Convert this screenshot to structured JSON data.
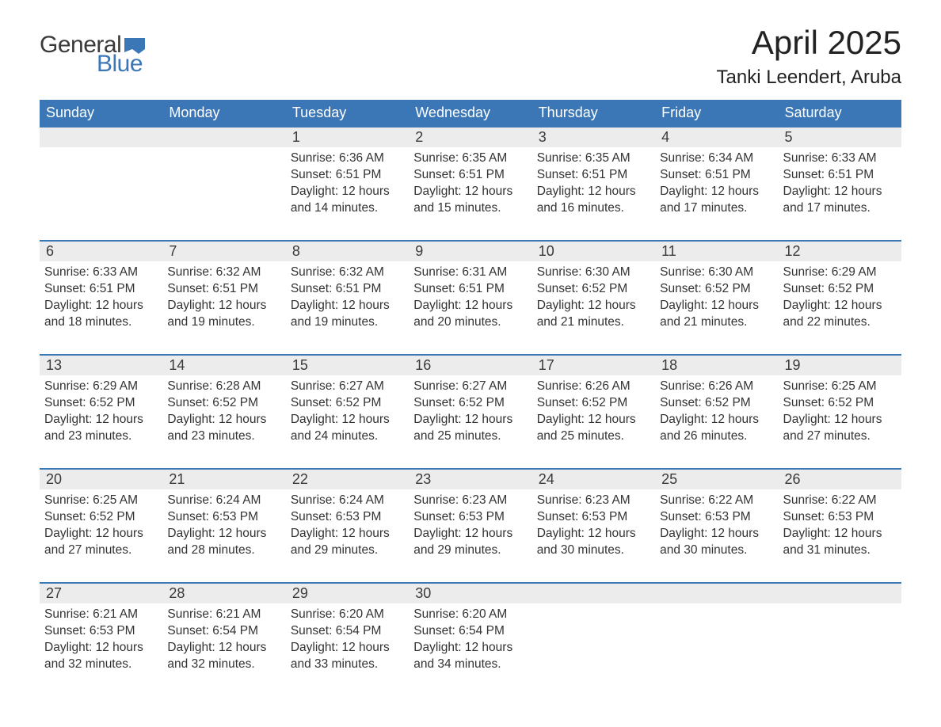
{
  "logo": {
    "text_general": "General",
    "text_blue": "Blue",
    "general_color": "#3a3a3a",
    "blue_color": "#3b77b6",
    "flag_color": "#3b77b6"
  },
  "header": {
    "month_title": "April 2025",
    "location": "Tanki Leendert, Aruba",
    "title_fontsize": 42,
    "location_fontsize": 24
  },
  "calendar": {
    "header_bg": "#3b77b6",
    "header_text_color": "#ffffff",
    "daynum_bg": "#ececec",
    "border_color": "#3b77b6",
    "text_color": "#333333",
    "body_fontsize": 15.5,
    "weekdays": [
      "Sunday",
      "Monday",
      "Tuesday",
      "Wednesday",
      "Thursday",
      "Friday",
      "Saturday"
    ],
    "weeks": [
      [
        {
          "empty": true
        },
        {
          "empty": true
        },
        {
          "num": "1",
          "sunrise": "Sunrise: 6:36 AM",
          "sunset": "Sunset: 6:51 PM",
          "daylight1": "Daylight: 12 hours",
          "daylight2": "and 14 minutes."
        },
        {
          "num": "2",
          "sunrise": "Sunrise: 6:35 AM",
          "sunset": "Sunset: 6:51 PM",
          "daylight1": "Daylight: 12 hours",
          "daylight2": "and 15 minutes."
        },
        {
          "num": "3",
          "sunrise": "Sunrise: 6:35 AM",
          "sunset": "Sunset: 6:51 PM",
          "daylight1": "Daylight: 12 hours",
          "daylight2": "and 16 minutes."
        },
        {
          "num": "4",
          "sunrise": "Sunrise: 6:34 AM",
          "sunset": "Sunset: 6:51 PM",
          "daylight1": "Daylight: 12 hours",
          "daylight2": "and 17 minutes."
        },
        {
          "num": "5",
          "sunrise": "Sunrise: 6:33 AM",
          "sunset": "Sunset: 6:51 PM",
          "daylight1": "Daylight: 12 hours",
          "daylight2": "and 17 minutes."
        }
      ],
      [
        {
          "num": "6",
          "sunrise": "Sunrise: 6:33 AM",
          "sunset": "Sunset: 6:51 PM",
          "daylight1": "Daylight: 12 hours",
          "daylight2": "and 18 minutes."
        },
        {
          "num": "7",
          "sunrise": "Sunrise: 6:32 AM",
          "sunset": "Sunset: 6:51 PM",
          "daylight1": "Daylight: 12 hours",
          "daylight2": "and 19 minutes."
        },
        {
          "num": "8",
          "sunrise": "Sunrise: 6:32 AM",
          "sunset": "Sunset: 6:51 PM",
          "daylight1": "Daylight: 12 hours",
          "daylight2": "and 19 minutes."
        },
        {
          "num": "9",
          "sunrise": "Sunrise: 6:31 AM",
          "sunset": "Sunset: 6:51 PM",
          "daylight1": "Daylight: 12 hours",
          "daylight2": "and 20 minutes."
        },
        {
          "num": "10",
          "sunrise": "Sunrise: 6:30 AM",
          "sunset": "Sunset: 6:52 PM",
          "daylight1": "Daylight: 12 hours",
          "daylight2": "and 21 minutes."
        },
        {
          "num": "11",
          "sunrise": "Sunrise: 6:30 AM",
          "sunset": "Sunset: 6:52 PM",
          "daylight1": "Daylight: 12 hours",
          "daylight2": "and 21 minutes."
        },
        {
          "num": "12",
          "sunrise": "Sunrise: 6:29 AM",
          "sunset": "Sunset: 6:52 PM",
          "daylight1": "Daylight: 12 hours",
          "daylight2": "and 22 minutes."
        }
      ],
      [
        {
          "num": "13",
          "sunrise": "Sunrise: 6:29 AM",
          "sunset": "Sunset: 6:52 PM",
          "daylight1": "Daylight: 12 hours",
          "daylight2": "and 23 minutes."
        },
        {
          "num": "14",
          "sunrise": "Sunrise: 6:28 AM",
          "sunset": "Sunset: 6:52 PM",
          "daylight1": "Daylight: 12 hours",
          "daylight2": "and 23 minutes."
        },
        {
          "num": "15",
          "sunrise": "Sunrise: 6:27 AM",
          "sunset": "Sunset: 6:52 PM",
          "daylight1": "Daylight: 12 hours",
          "daylight2": "and 24 minutes."
        },
        {
          "num": "16",
          "sunrise": "Sunrise: 6:27 AM",
          "sunset": "Sunset: 6:52 PM",
          "daylight1": "Daylight: 12 hours",
          "daylight2": "and 25 minutes."
        },
        {
          "num": "17",
          "sunrise": "Sunrise: 6:26 AM",
          "sunset": "Sunset: 6:52 PM",
          "daylight1": "Daylight: 12 hours",
          "daylight2": "and 25 minutes."
        },
        {
          "num": "18",
          "sunrise": "Sunrise: 6:26 AM",
          "sunset": "Sunset: 6:52 PM",
          "daylight1": "Daylight: 12 hours",
          "daylight2": "and 26 minutes."
        },
        {
          "num": "19",
          "sunrise": "Sunrise: 6:25 AM",
          "sunset": "Sunset: 6:52 PM",
          "daylight1": "Daylight: 12 hours",
          "daylight2": "and 27 minutes."
        }
      ],
      [
        {
          "num": "20",
          "sunrise": "Sunrise: 6:25 AM",
          "sunset": "Sunset: 6:52 PM",
          "daylight1": "Daylight: 12 hours",
          "daylight2": "and 27 minutes."
        },
        {
          "num": "21",
          "sunrise": "Sunrise: 6:24 AM",
          "sunset": "Sunset: 6:53 PM",
          "daylight1": "Daylight: 12 hours",
          "daylight2": "and 28 minutes."
        },
        {
          "num": "22",
          "sunrise": "Sunrise: 6:24 AM",
          "sunset": "Sunset: 6:53 PM",
          "daylight1": "Daylight: 12 hours",
          "daylight2": "and 29 minutes."
        },
        {
          "num": "23",
          "sunrise": "Sunrise: 6:23 AM",
          "sunset": "Sunset: 6:53 PM",
          "daylight1": "Daylight: 12 hours",
          "daylight2": "and 29 minutes."
        },
        {
          "num": "24",
          "sunrise": "Sunrise: 6:23 AM",
          "sunset": "Sunset: 6:53 PM",
          "daylight1": "Daylight: 12 hours",
          "daylight2": "and 30 minutes."
        },
        {
          "num": "25",
          "sunrise": "Sunrise: 6:22 AM",
          "sunset": "Sunset: 6:53 PM",
          "daylight1": "Daylight: 12 hours",
          "daylight2": "and 30 minutes."
        },
        {
          "num": "26",
          "sunrise": "Sunrise: 6:22 AM",
          "sunset": "Sunset: 6:53 PM",
          "daylight1": "Daylight: 12 hours",
          "daylight2": "and 31 minutes."
        }
      ],
      [
        {
          "num": "27",
          "sunrise": "Sunrise: 6:21 AM",
          "sunset": "Sunset: 6:53 PM",
          "daylight1": "Daylight: 12 hours",
          "daylight2": "and 32 minutes."
        },
        {
          "num": "28",
          "sunrise": "Sunrise: 6:21 AM",
          "sunset": "Sunset: 6:54 PM",
          "daylight1": "Daylight: 12 hours",
          "daylight2": "and 32 minutes."
        },
        {
          "num": "29",
          "sunrise": "Sunrise: 6:20 AM",
          "sunset": "Sunset: 6:54 PM",
          "daylight1": "Daylight: 12 hours",
          "daylight2": "and 33 minutes."
        },
        {
          "num": "30",
          "sunrise": "Sunrise: 6:20 AM",
          "sunset": "Sunset: 6:54 PM",
          "daylight1": "Daylight: 12 hours",
          "daylight2": "and 34 minutes."
        },
        {
          "empty": true
        },
        {
          "empty": true
        },
        {
          "empty": true
        }
      ]
    ]
  }
}
